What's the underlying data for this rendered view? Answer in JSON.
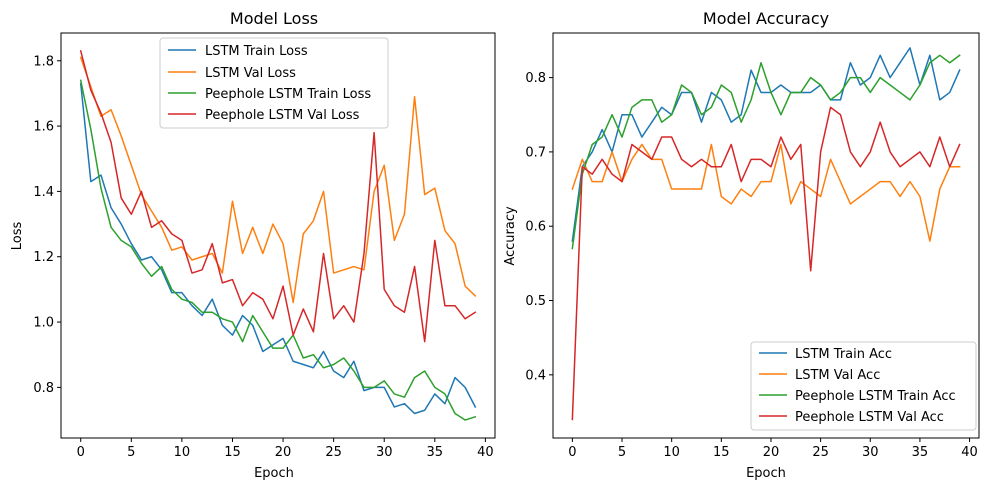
{
  "chart_data": [
    {
      "type": "line",
      "title": "Model Loss",
      "xlabel": "Epoch",
      "ylabel": "Loss",
      "xlim": [
        -1.95,
        40.95
      ],
      "ylim": [
        0.645,
        1.885
      ],
      "xticks": [
        0,
        5,
        10,
        15,
        20,
        25,
        30,
        35,
        40
      ],
      "yticks": [
        0.8,
        1.0,
        1.2,
        1.4,
        1.6,
        1.8
      ],
      "ytick_labels": [
        "0.8",
        "1.0",
        "1.2",
        "1.4",
        "1.6",
        "1.8"
      ],
      "legend_position": "top-center",
      "grid": false,
      "x": [
        0,
        1,
        2,
        3,
        4,
        5,
        6,
        7,
        8,
        9,
        10,
        11,
        12,
        13,
        14,
        15,
        16,
        17,
        18,
        19,
        20,
        21,
        22,
        23,
        24,
        25,
        26,
        27,
        28,
        29,
        30,
        31,
        32,
        33,
        34,
        35,
        36,
        37,
        38,
        39
      ],
      "series": [
        {
          "name": "LSTM Train Loss",
          "color": "#1f77b4",
          "values": [
            1.73,
            1.43,
            1.45,
            1.35,
            1.3,
            1.24,
            1.19,
            1.2,
            1.16,
            1.09,
            1.09,
            1.05,
            1.02,
            1.07,
            0.99,
            0.96,
            1.02,
            0.99,
            0.91,
            0.93,
            0.95,
            0.88,
            0.87,
            0.86,
            0.91,
            0.85,
            0.83,
            0.88,
            0.79,
            0.8,
            0.8,
            0.74,
            0.75,
            0.72,
            0.73,
            0.78,
            0.75,
            0.83,
            0.8,
            0.74
          ]
        },
        {
          "name": "LSTM Val Loss",
          "color": "#ff7f0e",
          "values": [
            1.81,
            1.72,
            1.63,
            1.65,
            1.57,
            1.48,
            1.39,
            1.34,
            1.29,
            1.22,
            1.23,
            1.19,
            1.2,
            1.21,
            1.15,
            1.37,
            1.21,
            1.29,
            1.21,
            1.3,
            1.24,
            1.06,
            1.27,
            1.31,
            1.4,
            1.15,
            1.16,
            1.17,
            1.16,
            1.4,
            1.48,
            1.25,
            1.33,
            1.69,
            1.39,
            1.41,
            1.28,
            1.24,
            1.11,
            1.08
          ]
        },
        {
          "name": "Peephole LSTM Train Loss",
          "color": "#2ca02c",
          "values": [
            1.74,
            1.59,
            1.41,
            1.29,
            1.25,
            1.23,
            1.18,
            1.14,
            1.17,
            1.1,
            1.07,
            1.06,
            1.03,
            1.03,
            1.01,
            1.0,
            0.94,
            1.02,
            0.97,
            0.92,
            0.92,
            0.96,
            0.89,
            0.9,
            0.86,
            0.87,
            0.89,
            0.85,
            0.8,
            0.8,
            0.82,
            0.78,
            0.77,
            0.83,
            0.85,
            0.8,
            0.78,
            0.72,
            0.7,
            0.71
          ]
        },
        {
          "name": "Peephole LSTM Val Loss",
          "color": "#d62728",
          "values": [
            1.83,
            1.71,
            1.64,
            1.55,
            1.38,
            1.33,
            1.4,
            1.29,
            1.31,
            1.27,
            1.25,
            1.15,
            1.16,
            1.24,
            1.12,
            1.13,
            1.05,
            1.09,
            1.07,
            1.01,
            1.11,
            0.96,
            1.04,
            0.97,
            1.21,
            1.01,
            1.05,
            1.0,
            1.21,
            1.58,
            1.1,
            1.05,
            1.03,
            1.17,
            0.94,
            1.25,
            1.05,
            1.05,
            1.01,
            1.03
          ]
        }
      ]
    },
    {
      "type": "line",
      "title": "Model Accuracy",
      "xlabel": "Epoch",
      "ylabel": "Accuracy",
      "xlim": [
        -1.95,
        40.95
      ],
      "ylim": [
        0.315,
        0.86
      ],
      "xticks": [
        0,
        5,
        10,
        15,
        20,
        25,
        30,
        35,
        40
      ],
      "yticks": [
        0.4,
        0.5,
        0.6,
        0.7,
        0.8
      ],
      "ytick_labels": [
        "0.4",
        "0.5",
        "0.6",
        "0.7",
        "0.8"
      ],
      "legend_position": "lower-right",
      "grid": false,
      "x": [
        0,
        1,
        2,
        3,
        4,
        5,
        6,
        7,
        8,
        9,
        10,
        11,
        12,
        13,
        14,
        15,
        16,
        17,
        18,
        19,
        20,
        21,
        22,
        23,
        24,
        25,
        26,
        27,
        28,
        29,
        30,
        31,
        32,
        33,
        34,
        35,
        36,
        37,
        38,
        39
      ],
      "series": [
        {
          "name": "LSTM Train Acc",
          "color": "#1f77b4",
          "values": [
            0.58,
            0.68,
            0.7,
            0.73,
            0.7,
            0.75,
            0.75,
            0.72,
            0.74,
            0.76,
            0.75,
            0.78,
            0.78,
            0.74,
            0.78,
            0.77,
            0.74,
            0.75,
            0.81,
            0.78,
            0.78,
            0.79,
            0.78,
            0.78,
            0.78,
            0.79,
            0.77,
            0.77,
            0.82,
            0.79,
            0.8,
            0.83,
            0.8,
            0.82,
            0.84,
            0.79,
            0.83,
            0.77,
            0.78,
            0.81
          ]
        },
        {
          "name": "LSTM Val Acc",
          "color": "#ff7f0e",
          "values": [
            0.65,
            0.69,
            0.66,
            0.66,
            0.7,
            0.66,
            0.69,
            0.71,
            0.69,
            0.69,
            0.65,
            0.65,
            0.65,
            0.65,
            0.71,
            0.64,
            0.63,
            0.65,
            0.64,
            0.66,
            0.66,
            0.71,
            0.63,
            0.66,
            0.65,
            0.64,
            0.69,
            0.66,
            0.63,
            0.64,
            0.65,
            0.66,
            0.66,
            0.64,
            0.66,
            0.64,
            0.58,
            0.65,
            0.68,
            0.68
          ]
        },
        {
          "name": "Peephole LSTM Train Acc",
          "color": "#2ca02c",
          "values": [
            0.57,
            0.67,
            0.71,
            0.72,
            0.75,
            0.72,
            0.76,
            0.77,
            0.77,
            0.74,
            0.75,
            0.79,
            0.78,
            0.75,
            0.76,
            0.79,
            0.78,
            0.74,
            0.77,
            0.82,
            0.78,
            0.75,
            0.78,
            0.78,
            0.8,
            0.79,
            0.77,
            0.78,
            0.8,
            0.8,
            0.78,
            0.8,
            0.79,
            0.78,
            0.77,
            0.79,
            0.82,
            0.83,
            0.82,
            0.83
          ]
        },
        {
          "name": "Peephole LSTM Val Acc",
          "color": "#d62728",
          "values": [
            0.34,
            0.68,
            0.67,
            0.69,
            0.67,
            0.66,
            0.71,
            0.7,
            0.69,
            0.72,
            0.72,
            0.69,
            0.68,
            0.69,
            0.68,
            0.68,
            0.71,
            0.66,
            0.69,
            0.69,
            0.68,
            0.72,
            0.69,
            0.71,
            0.54,
            0.7,
            0.76,
            0.75,
            0.7,
            0.68,
            0.7,
            0.74,
            0.7,
            0.68,
            0.69,
            0.7,
            0.68,
            0.72,
            0.68,
            0.71
          ]
        }
      ]
    }
  ]
}
